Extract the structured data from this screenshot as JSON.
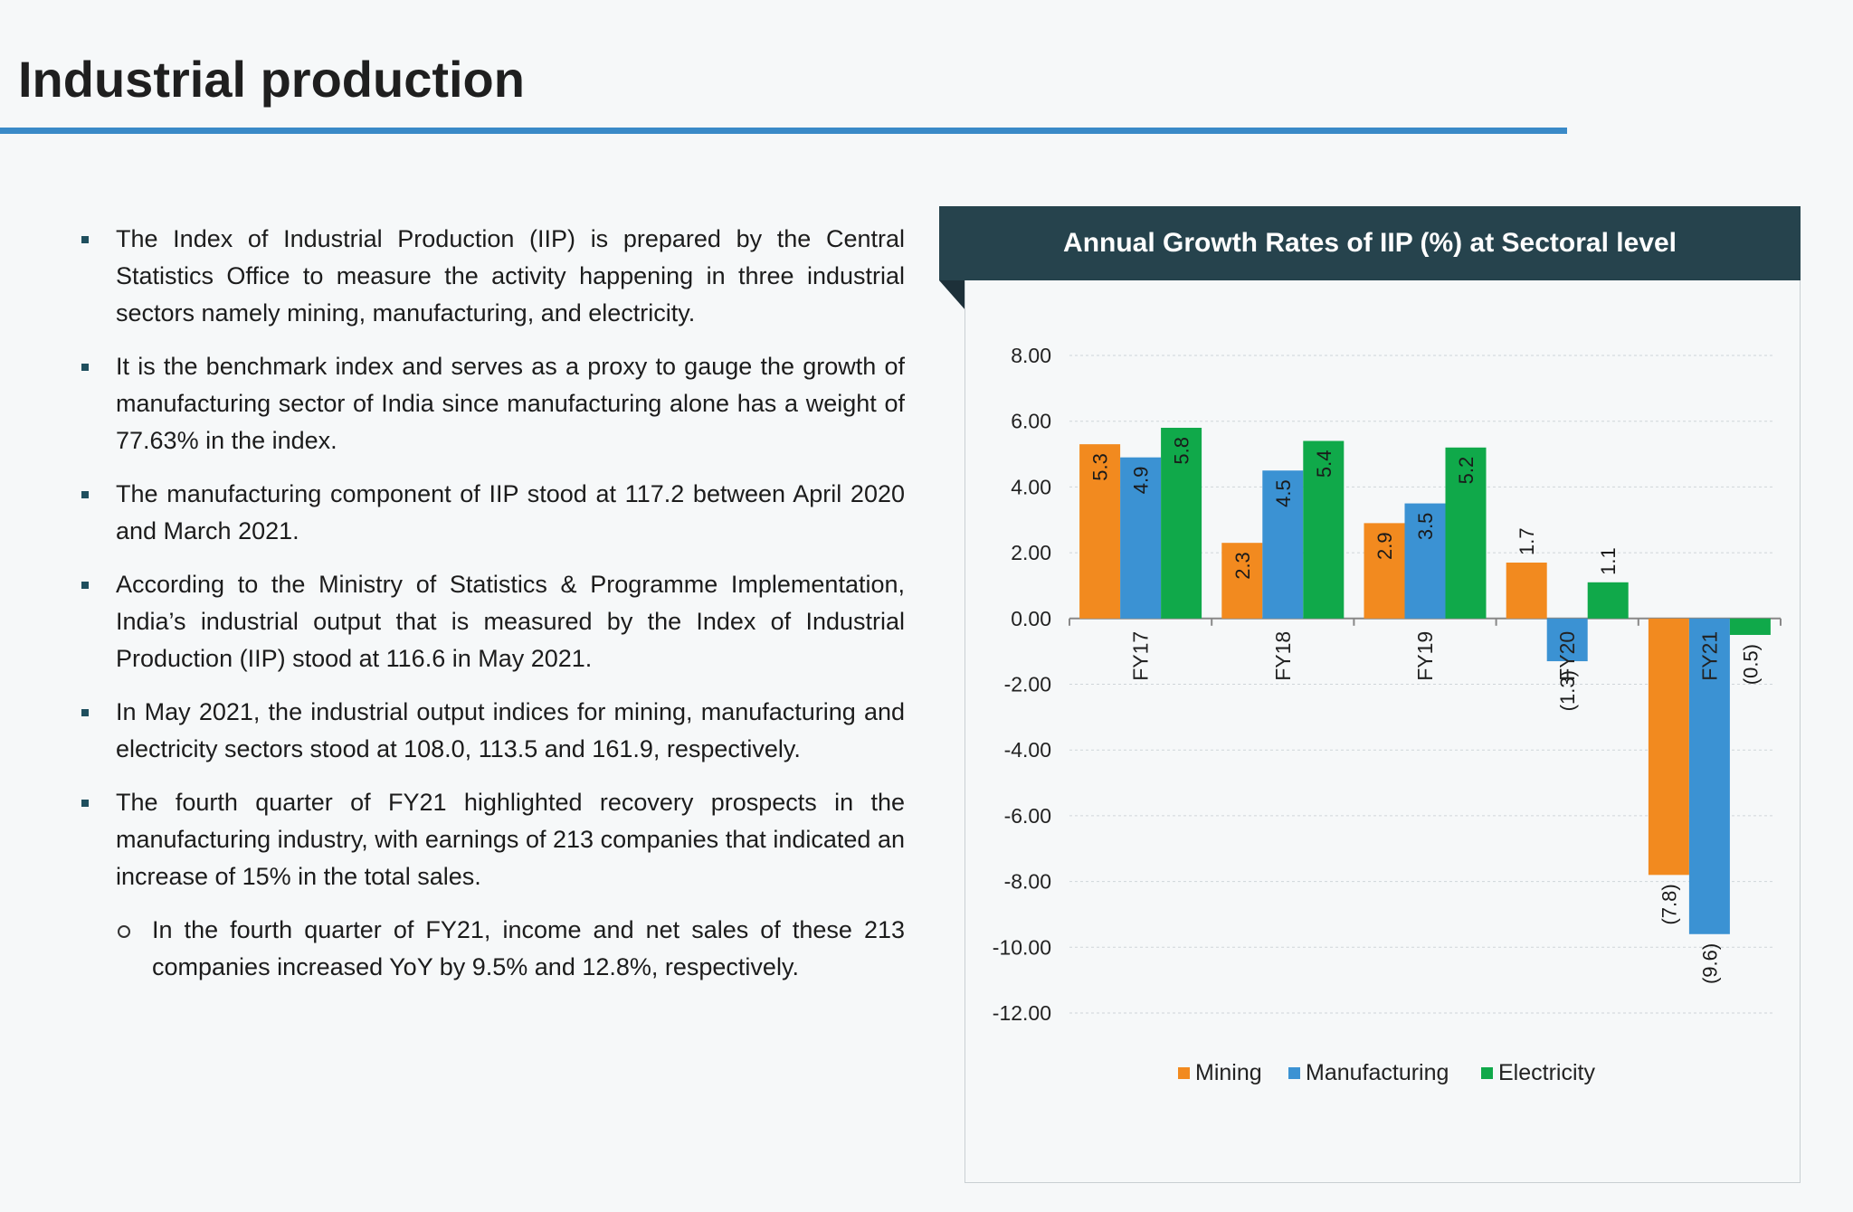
{
  "page": {
    "title": "Industrial production"
  },
  "bullets": [
    {
      "level": 1,
      "text": "The Index of Industrial Production (IIP) is prepared by the Central Statistics Office to measure the activity happening in three industrial sectors namely mining, manufacturing, and electricity."
    },
    {
      "level": 1,
      "text": "It is the benchmark index and serves as a proxy to gauge the growth of manufacturing sector of India since manufacturing alone has a weight of 77.63% in the index."
    },
    {
      "level": 1,
      "text": "The manufacturing component of IIP stood at 117.2 between April 2020 and March 2021."
    },
    {
      "level": 1,
      "text": "According to the Ministry of Statistics & Programme Implementation, India’s industrial output that is measured by the Index of Industrial Production (IIP) stood at 116.6 in May 2021."
    },
    {
      "level": 1,
      "text": "In May 2021, the industrial output indices for mining, manufacturing and electricity sectors stood at 108.0, 113.5 and 161.9, respectively."
    },
    {
      "level": 1,
      "text": "The fourth quarter of FY21 highlighted recovery prospects in the manufacturing industry, with earnings of 213 companies that indicated an increase of 15% in the total sales."
    },
    {
      "level": 2,
      "text": "In the fourth quarter of FY21, income and net sales of these 213 companies increased YoY by 9.5% and 12.8%, respectively."
    }
  ],
  "colors": {
    "accent_rule": "#3a8ac8",
    "chart_header_bg": "#26434d",
    "mining": "#f28a1f",
    "manufacturing": "#3b92d3",
    "electricity": "#10a94a"
  },
  "chart_data": {
    "type": "bar",
    "title": "Annual Growth Rates of IIP (%) at Sectoral level",
    "categories": [
      "FY17",
      "FY18",
      "FY19",
      "FY20",
      "FY21"
    ],
    "series": [
      {
        "name": "Mining",
        "color": "#f28a1f",
        "values": [
          5.3,
          2.3,
          2.9,
          1.7,
          -7.8
        ],
        "labels": [
          "5.3",
          "2.3",
          "2.9",
          "1.7",
          "(7.8)"
        ]
      },
      {
        "name": "Manufacturing",
        "color": "#3b92d3",
        "values": [
          4.9,
          4.5,
          3.5,
          -1.3,
          -9.6
        ],
        "labels": [
          "4.9",
          "4.5",
          "3.5",
          "(1.3)",
          "(9.6)"
        ]
      },
      {
        "name": "Electricity",
        "color": "#10a94a",
        "values": [
          5.8,
          5.4,
          5.2,
          1.1,
          -0.5
        ],
        "labels": [
          "5.8",
          "5.4",
          "5.2",
          "1.1",
          "(0.5)"
        ]
      }
    ],
    "ylim": [
      -12,
      8
    ],
    "yticks": [
      8,
      6,
      4,
      2,
      0,
      -2,
      -4,
      -6,
      -8,
      -10,
      -12
    ],
    "ytick_labels": [
      "8.00",
      "6.00",
      "4.00",
      "2.00",
      "0.00",
      "-2.00",
      "-4.00",
      "-6.00",
      "-8.00",
      "-10.00",
      "-12.00"
    ],
    "grid": true,
    "legend_position": "bottom"
  }
}
